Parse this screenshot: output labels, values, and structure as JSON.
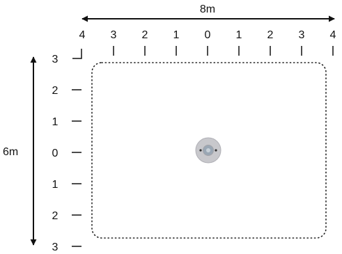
{
  "diagram": {
    "width_label": "8m",
    "height_label": "6m",
    "x_ticks": [
      "4",
      "3",
      "2",
      "1",
      "0",
      "1",
      "2",
      "3",
      "4"
    ],
    "y_ticks": [
      "3",
      "2",
      "1",
      "0",
      "1",
      "2",
      "3"
    ],
    "colors": {
      "line": "#111111",
      "boundary": "#222222",
      "sensor_body": "#c8c8cc",
      "sensor_rim": "#b0b0b6",
      "sensor_lens": "#9aa7b4"
    },
    "sensor_icon": "ceiling-sensor-icon"
  }
}
